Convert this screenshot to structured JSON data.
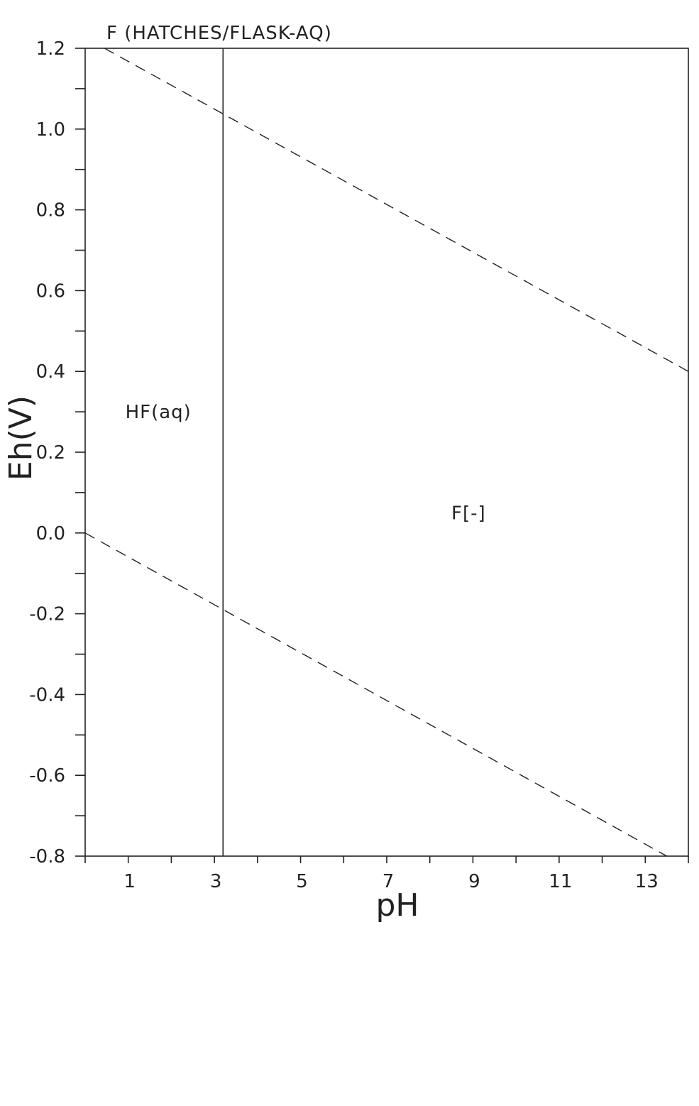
{
  "chart_data": {
    "type": "line",
    "title": "F (HATCHES/FLASK-AQ)",
    "xlabel": "pH",
    "ylabel": "Eh(V)",
    "xlim": [
      0,
      14
    ],
    "ylim": [
      -0.8,
      1.2
    ],
    "x_ticks": [
      "1",
      "3",
      "5",
      "7",
      "9",
      "11",
      "13"
    ],
    "y_ticks": [
      "1.2",
      "1.0",
      "0.8",
      "0.6",
      "0.4",
      "0.2",
      "0.0",
      "-0.2",
      "-0.4",
      "-0.6",
      "-0.8"
    ],
    "grid": false,
    "regions": [
      {
        "label": "HF(aq)",
        "x": 1.7,
        "y": 0.3
      },
      {
        "label": "F[-]",
        "x": 8.9,
        "y": 0.05
      }
    ],
    "series": [
      {
        "style": "solid",
        "x": [
          3.2,
          3.2
        ],
        "y": [
          -0.8,
          1.2
        ]
      },
      {
        "style": "dashed",
        "x": [
          0.45,
          14.0
        ],
        "y": [
          1.2,
          0.4
        ]
      },
      {
        "style": "dashed",
        "x": [
          0.0,
          13.5
        ],
        "y": [
          0.0,
          -0.8
        ]
      }
    ]
  }
}
